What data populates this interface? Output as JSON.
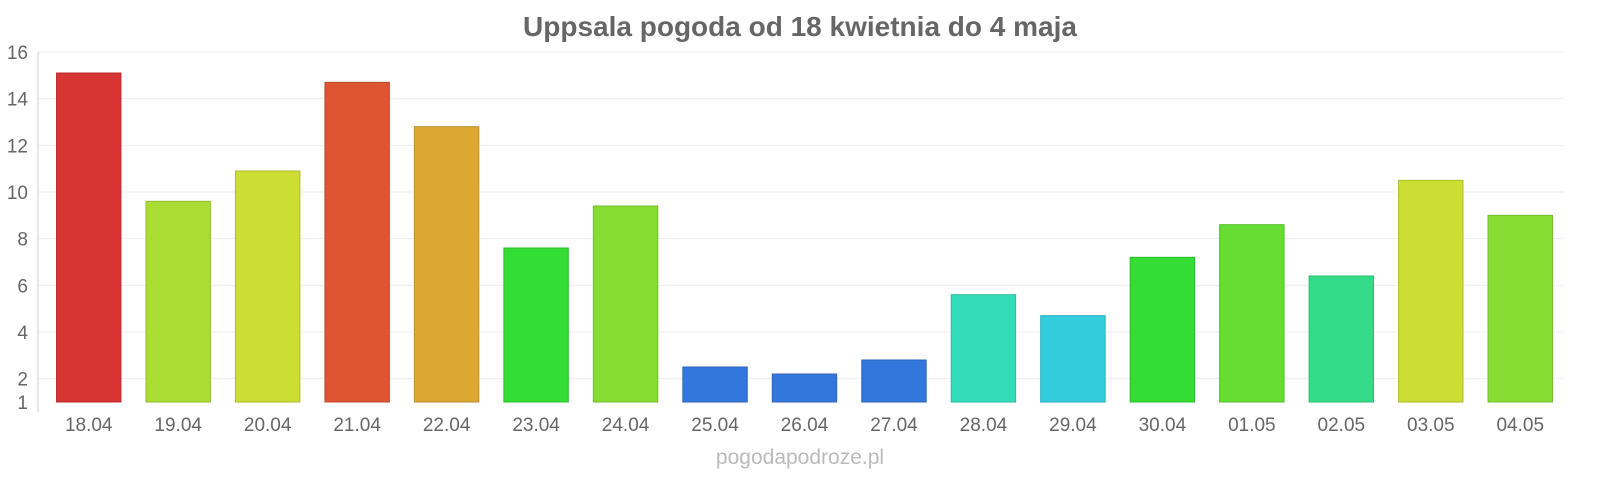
{
  "chart_data": {
    "type": "bar",
    "title": "Uppsala pogoda od 18 kwietnia do 4 maja",
    "categories": [
      "18.04",
      "19.04",
      "20.04",
      "21.04",
      "22.04",
      "23.04",
      "24.04",
      "25.04",
      "26.04",
      "27.04",
      "28.04",
      "29.04",
      "30.04",
      "01.05",
      "02.05",
      "03.05",
      "04.05"
    ],
    "values": [
      15.1,
      9.6,
      10.9,
      14.7,
      12.8,
      7.6,
      9.4,
      2.5,
      2.2,
      2.8,
      5.6,
      4.7,
      7.2,
      8.6,
      6.4,
      10.5,
      9.0
    ],
    "colors": [
      "#d93434",
      "#aadd33",
      "#ccdd33",
      "#dd5533",
      "#dda733",
      "#33dd33",
      "#88dd33",
      "#3377dd",
      "#3377dd",
      "#3377dd",
      "#33ddbb",
      "#33ccdd",
      "#33dd33",
      "#66dd33",
      "#33dd88",
      "#ccdd33",
      "#88dd33"
    ],
    "ylim": [
      1,
      16
    ],
    "yticks": [
      "1",
      "2",
      "4",
      "6",
      "8",
      "10",
      "12",
      "14",
      "16"
    ],
    "xlabel": "",
    "ylabel": "",
    "grid": true,
    "legend": "none"
  },
  "watermark": "pogodapodroze.pl"
}
